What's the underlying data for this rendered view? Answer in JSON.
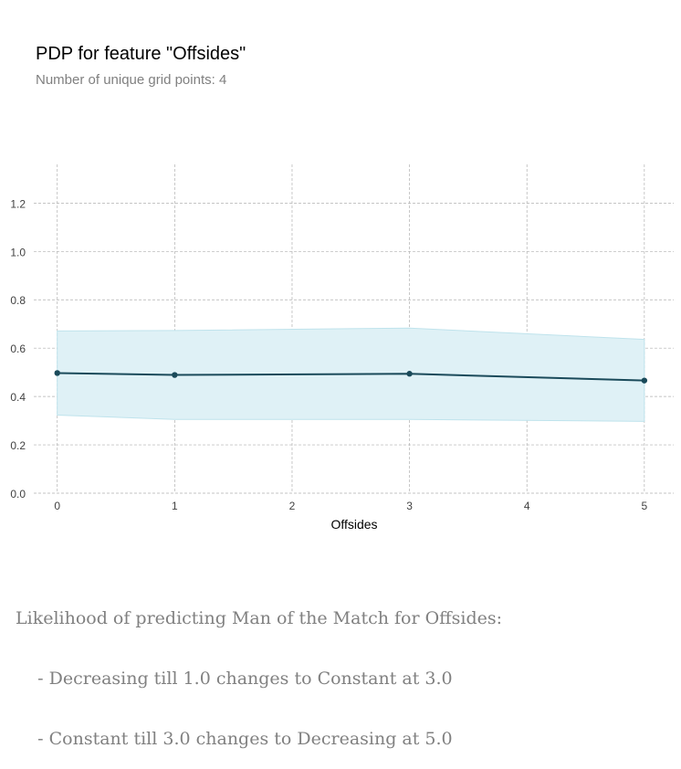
{
  "colors": {
    "line": "#1a4a5a",
    "band": "#dff1f6",
    "band_edge": "#bfe3ec",
    "grid": "#b0b0b0",
    "tick_text": "#424242"
  },
  "chart_data": {
    "type": "line",
    "title": "PDP for feature \"Offsides\"",
    "subtitle": "Number of unique grid points: 4",
    "xlabel": "Offsides",
    "ylabel": "",
    "xlim": [
      -0.2,
      5.25
    ],
    "ylim": [
      0,
      1.36
    ],
    "x_ticks": [
      0,
      1,
      2,
      3,
      4,
      5
    ],
    "y_ticks": [
      0.0,
      0.2,
      0.4,
      0.6,
      0.8,
      1.0,
      1.2
    ],
    "grid": true,
    "series": [
      {
        "name": "PDP",
        "x": [
          0,
          1,
          3,
          5
        ],
        "y": [
          0.497,
          0.489,
          0.494,
          0.466
        ],
        "lower": [
          0.323,
          0.305,
          0.305,
          0.297
        ],
        "upper": [
          0.671,
          0.673,
          0.683,
          0.636
        ]
      }
    ]
  },
  "caption": {
    "line1": "Likelihood of predicting Man of the Match for Offsides:",
    "line2": "    - Decreasing till 1.0 changes to Constant at 3.0",
    "line3": "    - Constant till 3.0 changes to Decreasing at 5.0"
  }
}
